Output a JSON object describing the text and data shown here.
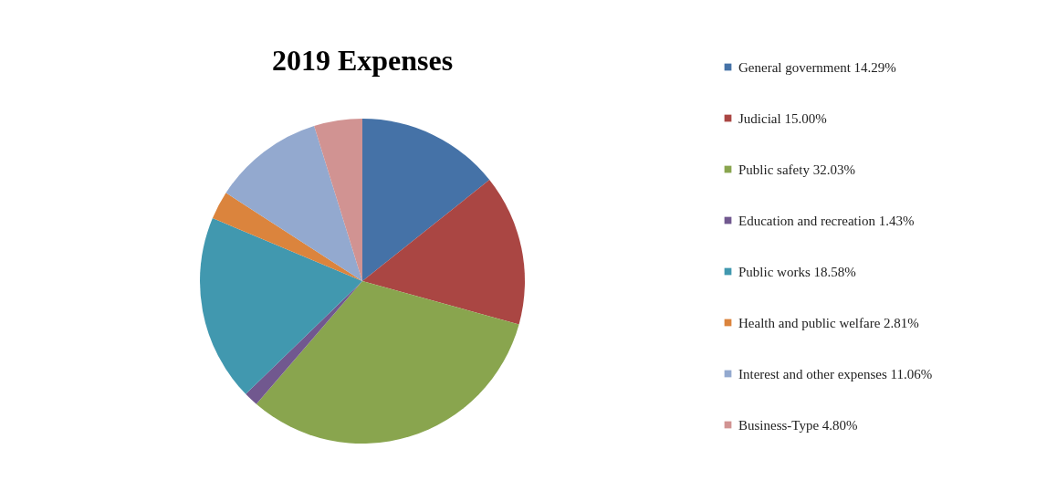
{
  "chart_data": {
    "type": "pie",
    "title": "2019 Expenses",
    "categories": [
      "General government",
      "Judicial",
      "Public safety",
      "Education and recreation",
      "Public works",
      "Health and public welfare",
      "Interest and other expenses",
      "Business-Type"
    ],
    "values": [
      14.29,
      15.0,
      32.03,
      1.43,
      18.58,
      2.81,
      11.06,
      4.8
    ],
    "value_labels": [
      "14.29%",
      "15.00%",
      "32.03%",
      "1.43%",
      "18.58%",
      "2.81%",
      "11.06%",
      "4.80%"
    ],
    "colors": [
      "#4572a7",
      "#aa4643",
      "#89a54e",
      "#71588f",
      "#4198af",
      "#db843d",
      "#93a9cf",
      "#d19392"
    ],
    "legend": "right"
  }
}
